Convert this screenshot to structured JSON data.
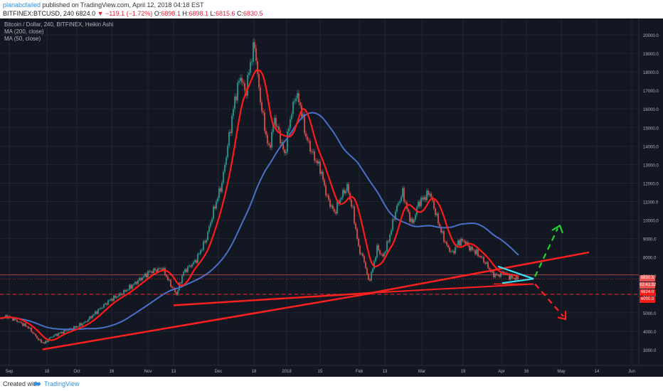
{
  "header": {
    "user": "planabcfailed",
    "published": " published on TradingView.com, April 12, 2018 04:18 EST",
    "symbol": "BITFINEX:BTCUSD",
    "interval": ", 240",
    "last": " 6824.0 ",
    "change": "▼ −119.1 (−1.72%)",
    "open_label": " O:",
    "open": "6898.1",
    "high_label": " H:",
    "high": "6898.1",
    "low_label": " L:",
    "low": "6815.6",
    "close_label": " C:",
    "close": "6830.5"
  },
  "legend": {
    "title": "Bitcoin / Dollar, 240, BITFINEX, Heikin Ashi",
    "ma200": "MA (200, close)",
    "ma50": "MA (50, close)"
  },
  "price_axis": {
    "ticks": [
      "20000.0",
      "19000.0",
      "18000.0",
      "17000.0",
      "16000.0",
      "15000.0",
      "14000.0",
      "13000.0",
      "12000.0",
      "11000.0",
      "10000.0",
      "9000.0",
      "8000.0",
      "7000.0",
      "6000.0",
      "5000.0",
      "4000.0",
      "3000.0"
    ],
    "tags": {
      "close": "6830.5",
      "countdown": "02:41:32",
      "ma": "6824.0",
      "level": "6000.0"
    }
  },
  "time_axis": {
    "labels": [
      "Sep",
      "18",
      "Oct",
      "16",
      "Nov",
      "13",
      "Dec",
      "18",
      "2018",
      "15",
      "Feb",
      "13",
      "Mar",
      "19",
      "Apr",
      "16",
      "May",
      "14",
      "Jun"
    ]
  },
  "footer": {
    "created": "Created with",
    "brand": "TradingView"
  },
  "colors": {
    "background": "#131722",
    "up": "#26a69a",
    "down": "#ef5350",
    "ma50": "#ff1a1a",
    "ma200": "#4a6fc7",
    "trend": "#ff2020",
    "triangle": "#40e0f0",
    "arrow_up": "#22d32e",
    "arrow_down": "#ff2020"
  },
  "chart_data": {
    "type": "candlestick",
    "title": "Bitcoin / Dollar, 240, BITFINEX, Heikin Ashi",
    "y_range": [
      2500,
      20500
    ],
    "x_labels": [
      "Sep",
      "18",
      "Oct",
      "16",
      "Nov",
      "13",
      "Dec",
      "18",
      "2018",
      "15",
      "Feb",
      "13",
      "Mar",
      "19",
      "Apr",
      "16",
      "May",
      "14",
      "Jun"
    ],
    "approx_close_path": [
      [
        "Sep",
        4600
      ],
      [
        "18",
        3400
      ],
      [
        "Oct",
        4300
      ],
      [
        "16",
        5700
      ],
      [
        "Nov",
        7300
      ],
      [
        "13",
        6300
      ],
      [
        "Dec",
        11500
      ],
      [
        "18",
        19000
      ],
      [
        "2018",
        14200
      ],
      [
        "15",
        11000
      ],
      [
        "Feb",
        6200
      ],
      [
        "13",
        8600
      ],
      [
        "Mar",
        11000
      ],
      [
        "19",
        8500
      ],
      [
        "Apr",
        7000
      ],
      [
        "16",
        6830
      ]
    ],
    "indicators": [
      "MA (200, close)",
      "MA (50, close)"
    ],
    "horizontal_line": 6000
  }
}
